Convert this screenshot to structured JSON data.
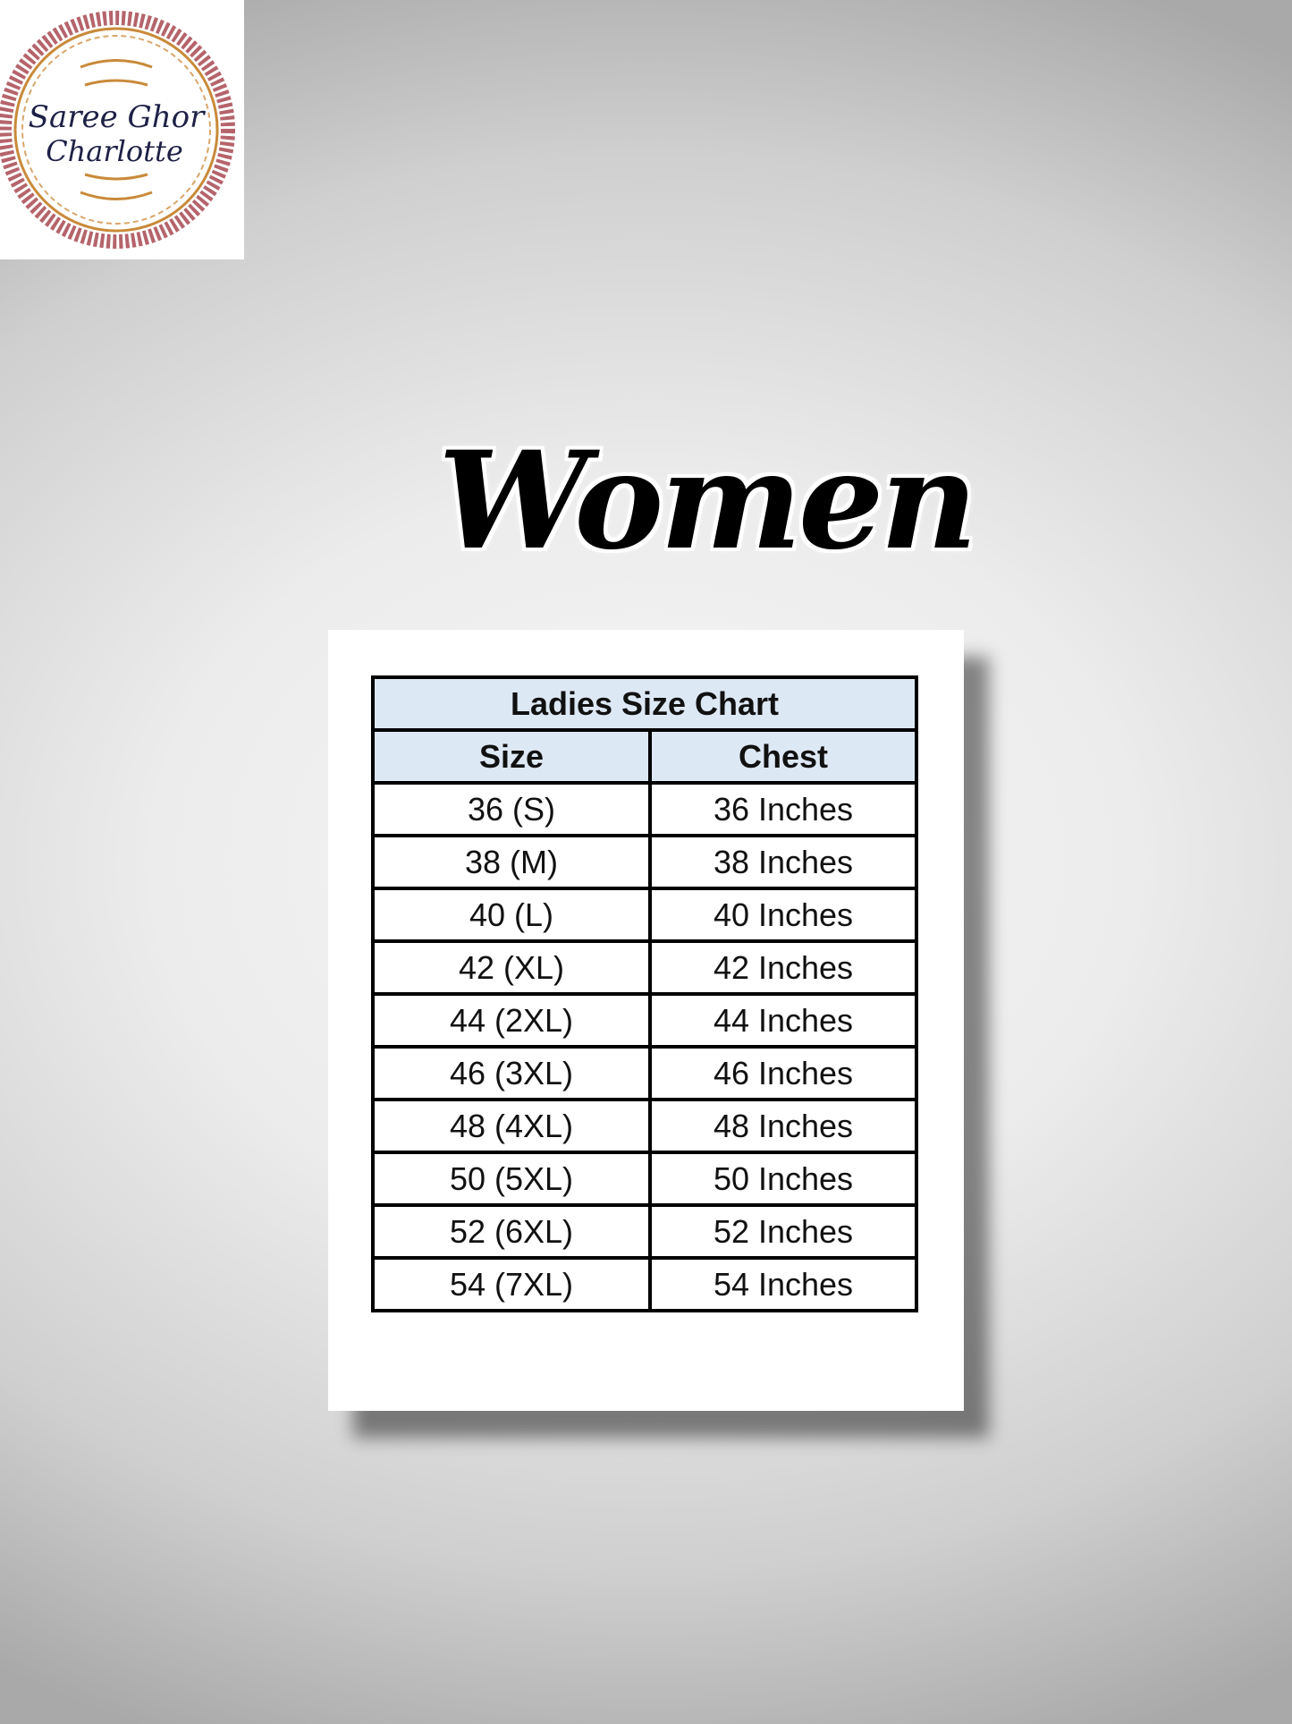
{
  "logo": {
    "text_line1": "Saree Ghor",
    "text_line2": "Charlotte",
    "colors": {
      "border": "#b5646b",
      "ornament": "#c98a3a",
      "text": "#1e2146"
    }
  },
  "heading": "Women",
  "size_chart": {
    "title": "Ladies Size Chart",
    "columns": [
      "Size",
      "Chest"
    ],
    "rows": [
      [
        "36  (S)",
        "36 Inches"
      ],
      [
        "38 (M)",
        "38 Inches"
      ],
      [
        "40  (L)",
        "40 Inches"
      ],
      [
        "42 (XL)",
        "42 Inches"
      ],
      [
        "44 (2XL)",
        "44 Inches"
      ],
      [
        "46 (3XL)",
        "46 Inches"
      ],
      [
        "48 (4XL)",
        "48 Inches"
      ],
      [
        "50 (5XL)",
        "50 Inches"
      ],
      [
        "52 (6XL)",
        "52 Inches"
      ],
      [
        "54 (7XL)",
        "54 Inches"
      ]
    ],
    "header_color": "#dde8f5"
  }
}
